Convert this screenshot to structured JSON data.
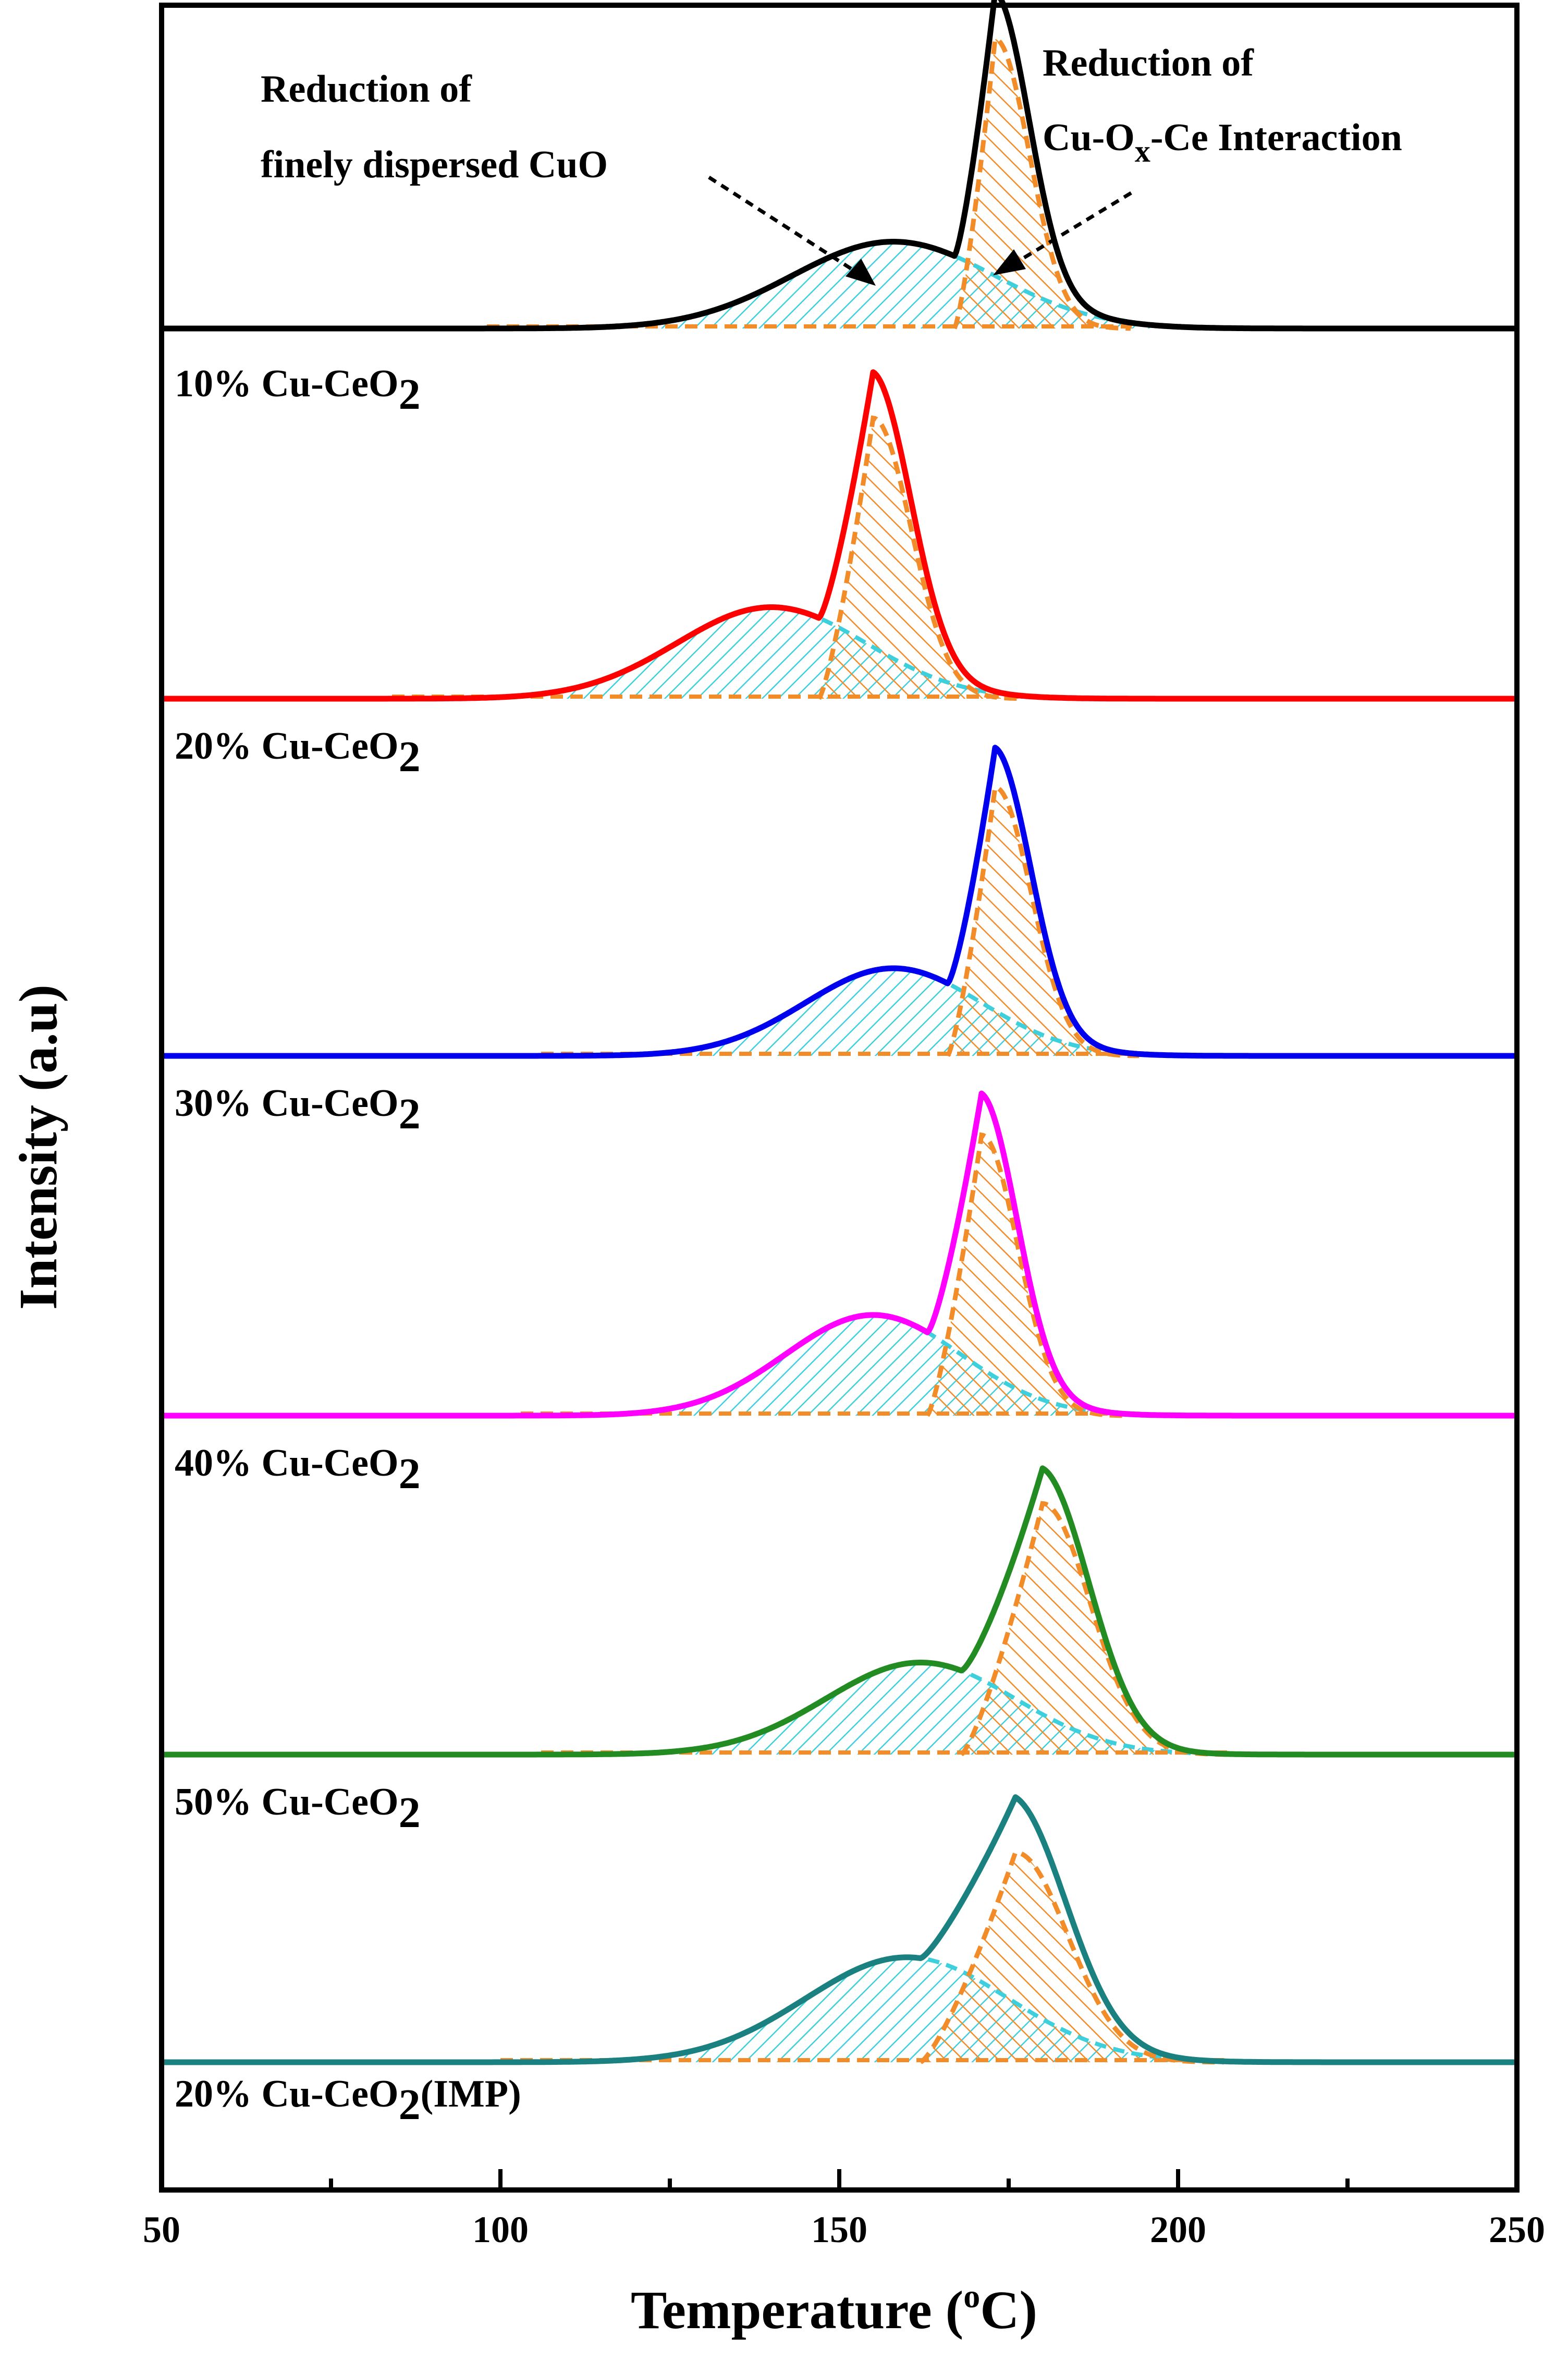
{
  "chart_data": {
    "type": "line",
    "title": "",
    "xlabel": "Temperature (",
    "xlabel_sup": "o",
    "xlabel_end": "C)",
    "ylabel": "Intensity (a.u)",
    "xlim": [
      50,
      250
    ],
    "x_ticks": [
      50,
      100,
      150,
      200,
      250
    ],
    "grid": false,
    "annotations": {
      "dispersed": {
        "line1": "Reduction of",
        "line2": "finely dispersed CuO"
      },
      "interaction": {
        "line1": "Reduction of",
        "line2_a": "Cu-O",
        "line2_sub": "x",
        "line2_b": "-Ce Interaction"
      }
    },
    "component_colors": {
      "dispersed_cuo": "#3ecfdc",
      "cu_ox_ce": "#f28c28"
    },
    "series": [
      {
        "name": "10% Cu-CeO2",
        "label_main": "10% Cu-CeO",
        "label_sub": "2",
        "label_suffix": "",
        "color": "#000000",
        "peak1": {
          "center": 158,
          "amplitude": 0.3,
          "width": 15
        },
        "peak2": {
          "center": 173,
          "amplitude": 1.0,
          "width": 3.6
        },
        "peak2_onset": 167
      },
      {
        "name": "20% Cu-CeO2",
        "label_main": "20% Cu-CeO",
        "label_sub": "2",
        "label_suffix": "",
        "color": "#ff0000",
        "peak1": {
          "center": 140,
          "amplitude": 0.3,
          "width": 14
        },
        "peak2": {
          "center": 155,
          "amplitude": 0.92,
          "width": 4.0
        },
        "peak2_onset": 147
      },
      {
        "name": "30% Cu-CeO2",
        "label_main": "30% Cu-CeO",
        "label_sub": "2",
        "label_suffix": "",
        "color": "#0000ee",
        "peak1": {
          "center": 158,
          "amplitude": 0.3,
          "width": 13
        },
        "peak2": {
          "center": 173,
          "amplitude": 0.92,
          "width": 3.8
        },
        "peak2_onset": 166
      },
      {
        "name": "40% Cu-CeO2",
        "label_main": "40% Cu-CeO",
        "label_sub": "2",
        "label_suffix": "",
        "color": "#ff00ff",
        "peak1": {
          "center": 155,
          "amplitude": 0.33,
          "width": 13
        },
        "peak2": {
          "center": 171,
          "amplitude": 0.92,
          "width": 3.8
        },
        "peak2_onset": 163
      },
      {
        "name": "50% Cu-CeO2",
        "label_main": "50% Cu-CeO",
        "label_sub": "2",
        "label_suffix": "",
        "color": "#228b22",
        "peak1": {
          "center": 162,
          "amplitude": 0.33,
          "width": 14
        },
        "peak2": {
          "center": 180,
          "amplitude": 0.9,
          "width": 5.0
        },
        "peak2_onset": 168
      },
      {
        "name": "20% Cu-CeO2(IMP)",
        "label_main": "20% Cu-CeO",
        "label_sub": "2",
        "label_suffix": "(IMP)",
        "color": "#1a8080",
        "peak1": {
          "center": 160,
          "amplitude": 0.35,
          "width": 15
        },
        "peak2": {
          "center": 176,
          "amplitude": 0.7,
          "width": 5.5
        },
        "peak2_onset": 162
      }
    ]
  }
}
